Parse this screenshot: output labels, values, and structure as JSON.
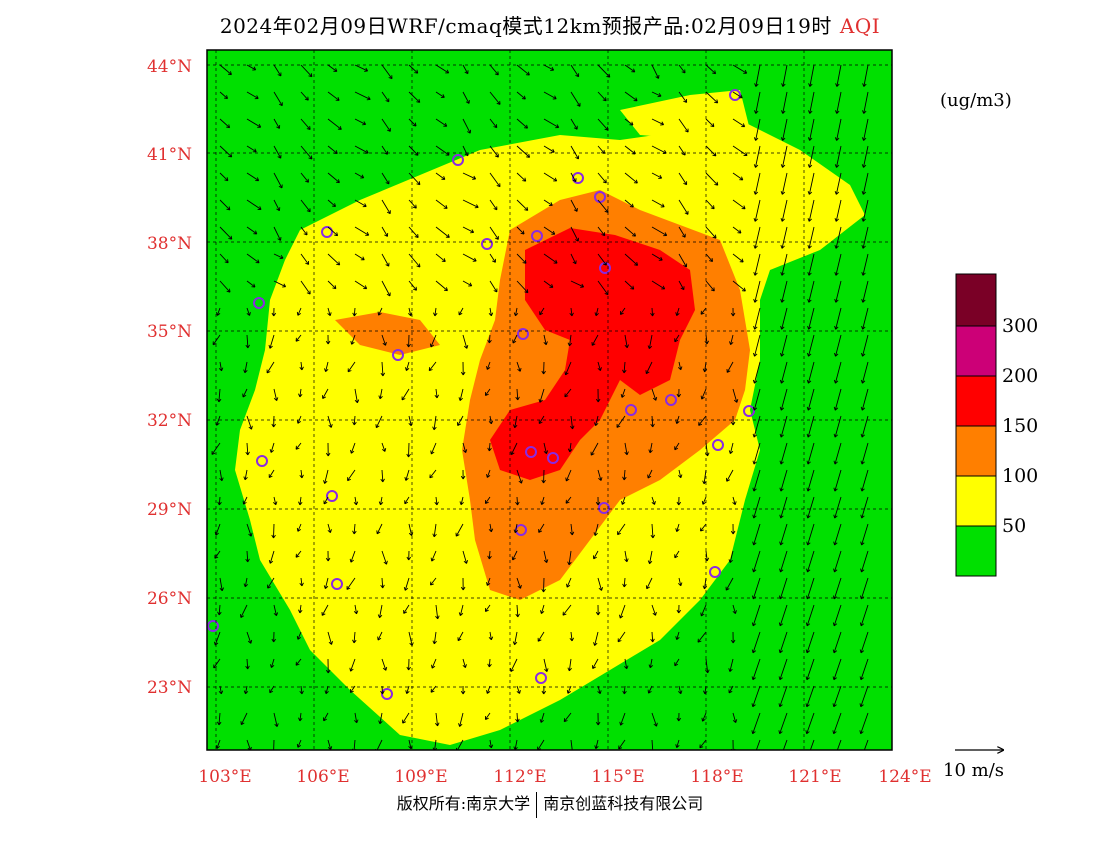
{
  "title": {
    "main": "2024年02月09日WRF/cmaq模式12km预报产品:02月09日19时",
    "variable": "AQI"
  },
  "units": "(ug/m3)",
  "lat_labels": [
    "44°N",
    "41°N",
    "38°N",
    "35°N",
    "32°N",
    "29°N",
    "26°N",
    "23°N"
  ],
  "lon_labels": [
    "103°E",
    "106°E",
    "109°E",
    "112°E",
    "115°E",
    "118°E",
    "121°E",
    "124°E"
  ],
  "legend": {
    "labels": [
      "300",
      "200",
      "150",
      "100",
      "50"
    ],
    "colors": [
      "#7a0026",
      "#cc0077",
      "#ff0000",
      "#ff7f00",
      "#ffff00",
      "#00e000"
    ]
  },
  "wind_reference": "10 m/s",
  "copyright": {
    "left": "版权所有:南京大学",
    "right": "南京创蓝科技有限公司"
  },
  "colors": {
    "good": "#00e000",
    "moderate": "#ffff00",
    "sensitive": "#ff7f00",
    "unhealthy": "#ff0000",
    "very_unhealthy": "#cc0077",
    "hazardous": "#7a0026",
    "axis_label": "#e03030",
    "city_marker": "#8a2be2"
  }
}
